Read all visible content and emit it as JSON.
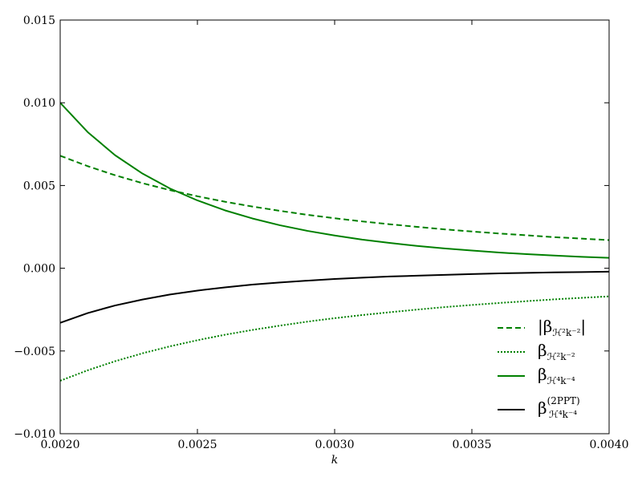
{
  "chart_data": {
    "type": "line",
    "title": "",
    "xlabel": "k",
    "ylabel": "",
    "xlim": [
      0.002,
      0.004
    ],
    "ylim": [
      -0.01,
      0.015
    ],
    "grid": false,
    "legend_position": "lower-right",
    "x_ticks": [
      "0.0020",
      "0.0025",
      "0.0030",
      "0.0035",
      "0.0040"
    ],
    "y_ticks": [
      "−0.010",
      "−0.005",
      "0.000",
      "0.005",
      "0.010",
      "0.015"
    ],
    "x": [
      0.002,
      0.0021,
      0.0022,
      0.0023,
      0.0024,
      0.0025,
      0.0026,
      0.0027,
      0.0028,
      0.0029,
      0.003,
      0.0031,
      0.0032,
      0.0033,
      0.0034,
      0.0035,
      0.0036,
      0.0037,
      0.0038,
      0.0039,
      0.004
    ],
    "series": [
      {
        "name": "|β_{H²k⁻²}|",
        "color": "#008000",
        "style": "dashed",
        "values": [
          0.0068,
          0.00617,
          0.00562,
          0.00514,
          0.00472,
          0.00435,
          0.00402,
          0.00373,
          0.00347,
          0.00323,
          0.00302,
          0.00283,
          0.00266,
          0.0025,
          0.00235,
          0.00222,
          0.0021,
          0.00199,
          0.00188,
          0.00179,
          0.0017
        ]
      },
      {
        "name": "β_{H²k⁻²}",
        "color": "#008000",
        "style": "dotted",
        "values": [
          -0.0068,
          -0.00617,
          -0.00562,
          -0.00514,
          -0.00472,
          -0.00435,
          -0.00402,
          -0.00373,
          -0.00347,
          -0.00323,
          -0.00302,
          -0.00283,
          -0.00266,
          -0.0025,
          -0.00235,
          -0.00222,
          -0.0021,
          -0.00199,
          -0.00188,
          -0.00179,
          -0.0017
        ]
      },
      {
        "name": "β_{H⁴k⁻⁴}",
        "color": "#008000",
        "style": "solid",
        "values": [
          0.01,
          0.00823,
          0.00683,
          0.00572,
          0.00482,
          0.0041,
          0.0035,
          0.00301,
          0.0026,
          0.00226,
          0.00198,
          0.00173,
          0.00153,
          0.00135,
          0.0012,
          0.00107,
          0.00095,
          0.00085,
          0.00077,
          0.00069,
          0.00063
        ]
      },
      {
        "name": "β^{(2PPT)}_{H⁴k⁻⁴}",
        "color": "#000000",
        "style": "solid",
        "values": [
          -0.0033,
          -0.00271,
          -0.00225,
          -0.00189,
          -0.00159,
          -0.00135,
          -0.00116,
          -0.00099,
          -0.00086,
          -0.00075,
          -0.00065,
          -0.00057,
          -0.0005,
          -0.00045,
          -0.0004,
          -0.00035,
          -0.00031,
          -0.00028,
          -0.00025,
          -0.00023,
          -0.00021
        ]
      }
    ]
  }
}
